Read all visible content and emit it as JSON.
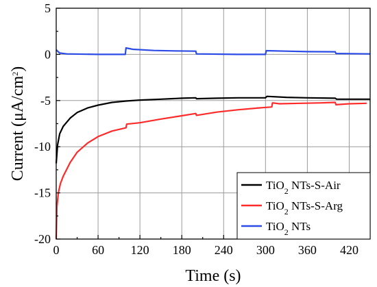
{
  "chart_data": {
    "type": "line",
    "xlabel": "Time (s)",
    "ylabel": "Current (μA/cm²)",
    "ylabel_parts": {
      "base": "Current (μA/cm",
      "sup": "2",
      "close": ")"
    },
    "xlim": [
      0,
      450
    ],
    "ylim": [
      -20,
      5
    ],
    "xticks": [
      0,
      60,
      120,
      180,
      240,
      300,
      360,
      420
    ],
    "yticks": [
      5,
      0,
      -5,
      -10,
      -15,
      -20
    ],
    "grid": true,
    "legend_position": "bottom-right",
    "series": [
      {
        "name": "TiO2 NTs-S-Air",
        "name_parts": {
          "pre": "TiO",
          "sub": "2",
          "post": " NTs-S-Air"
        },
        "color": "#000000",
        "points": [
          [
            0,
            -11.8
          ],
          [
            2,
            -9.8
          ],
          [
            5,
            -8.6
          ],
          [
            10,
            -7.8
          ],
          [
            20,
            -6.9
          ],
          [
            30,
            -6.3
          ],
          [
            45,
            -5.8
          ],
          [
            60,
            -5.5
          ],
          [
            80,
            -5.2
          ],
          [
            100,
            -5.05
          ],
          [
            120,
            -4.95
          ],
          [
            150,
            -4.85
          ],
          [
            180,
            -4.75
          ],
          [
            200,
            -4.7
          ],
          [
            201,
            -4.8
          ],
          [
            230,
            -4.75
          ],
          [
            260,
            -4.7
          ],
          [
            300,
            -4.7
          ],
          [
            302,
            -4.55
          ],
          [
            330,
            -4.65
          ],
          [
            360,
            -4.7
          ],
          [
            400,
            -4.75
          ],
          [
            402,
            -4.85
          ],
          [
            430,
            -4.85
          ],
          [
            450,
            -4.85
          ]
        ]
      },
      {
        "name": "TiO2 NTs-S-Arg",
        "name_parts": {
          "pre": "TiO",
          "sub": "2",
          "post": " NTs-S-Arg"
        },
        "color": "#ff2a2a",
        "points": [
          [
            0,
            -20
          ],
          [
            1,
            -16.5
          ],
          [
            3,
            -15
          ],
          [
            6,
            -14
          ],
          [
            10,
            -13.2
          ],
          [
            20,
            -11.7
          ],
          [
            30,
            -10.6
          ],
          [
            45,
            -9.6
          ],
          [
            60,
            -8.9
          ],
          [
            80,
            -8.3
          ],
          [
            100,
            -7.95
          ],
          [
            101,
            -7.55
          ],
          [
            120,
            -7.4
          ],
          [
            150,
            -7.0
          ],
          [
            180,
            -6.65
          ],
          [
            200,
            -6.4
          ],
          [
            201,
            -6.6
          ],
          [
            230,
            -6.25
          ],
          [
            260,
            -6.0
          ],
          [
            290,
            -5.8
          ],
          [
            309,
            -5.7
          ],
          [
            310,
            -5.25
          ],
          [
            320,
            -5.35
          ],
          [
            350,
            -5.3
          ],
          [
            380,
            -5.25
          ],
          [
            400,
            -5.2
          ],
          [
            401,
            -5.45
          ],
          [
            420,
            -5.35
          ],
          [
            445,
            -5.3
          ]
        ]
      },
      {
        "name": "TiO2 NTs",
        "name_parts": {
          "pre": "TiO",
          "sub": "2",
          "post": " NTs"
        },
        "color": "#2a4be6",
        "points": [
          [
            0,
            0.5
          ],
          [
            2,
            0.35
          ],
          [
            5,
            0.15
          ],
          [
            15,
            0.05
          ],
          [
            60,
            0.0
          ],
          [
            99,
            0.0
          ],
          [
            100,
            0.7
          ],
          [
            110,
            0.55
          ],
          [
            140,
            0.42
          ],
          [
            170,
            0.38
          ],
          [
            200,
            0.35
          ],
          [
            201,
            0.05
          ],
          [
            260,
            0.0
          ],
          [
            300,
            0.0
          ],
          [
            301,
            0.4
          ],
          [
            330,
            0.35
          ],
          [
            360,
            0.3
          ],
          [
            400,
            0.28
          ],
          [
            401,
            0.1
          ],
          [
            450,
            0.05
          ]
        ]
      }
    ]
  }
}
